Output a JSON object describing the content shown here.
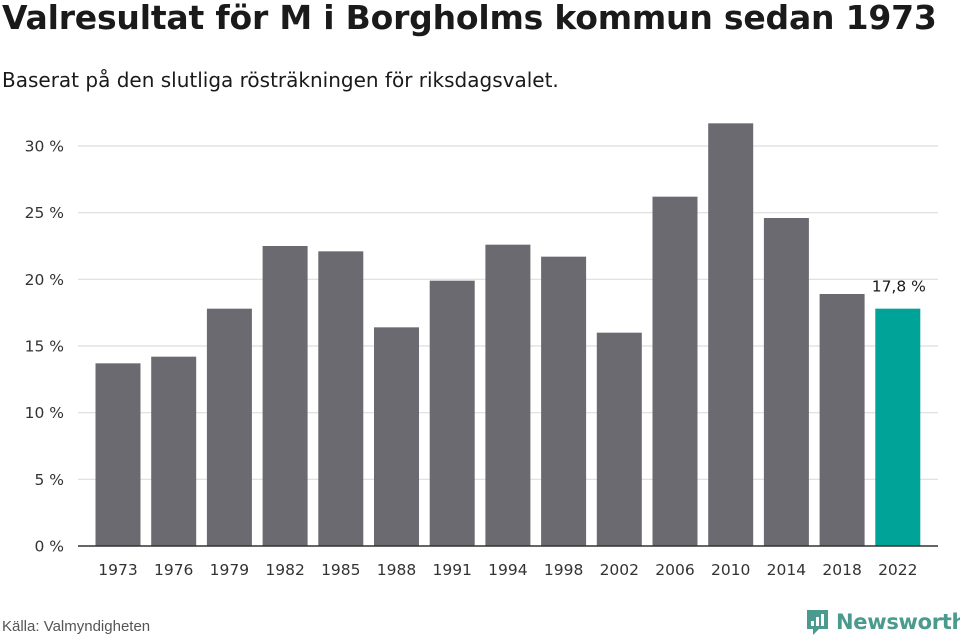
{
  "title": "Valresultat för M i Borgholms kommun sedan 1973",
  "subtitle": "Baserat på den slutliga rösträkningen för riksdagsvalet.",
  "source": "Källa: Valmyndigheten",
  "brand": {
    "name": "Newsworthy",
    "icon": "newsworthy-logo-icon",
    "color": "#4a9a8e"
  },
  "colors": {
    "bar": "#6b6a70",
    "highlight": "#00a398",
    "grid": "#dedede",
    "axis": "#333333"
  },
  "chart_data": {
    "type": "bar",
    "categories": [
      "1973",
      "1976",
      "1979",
      "1982",
      "1985",
      "1988",
      "1991",
      "1994",
      "1998",
      "2002",
      "2006",
      "2010",
      "2014",
      "2018",
      "2022"
    ],
    "values": [
      13.7,
      14.2,
      17.8,
      22.5,
      22.1,
      16.4,
      19.9,
      22.6,
      21.7,
      16.0,
      26.2,
      31.7,
      24.6,
      18.9,
      17.8
    ],
    "highlight_index": 14,
    "data_labels": [
      {
        "index": 14,
        "text": "17,8 %"
      }
    ],
    "ylim": [
      0,
      30
    ],
    "yticks": [
      0,
      5,
      10,
      15,
      20,
      25,
      30
    ],
    "ytick_labels": [
      "0 %",
      "5 %",
      "10 %",
      "15 %",
      "20 %",
      "25 %",
      "30 %"
    ],
    "grid": true,
    "legend": "none"
  }
}
